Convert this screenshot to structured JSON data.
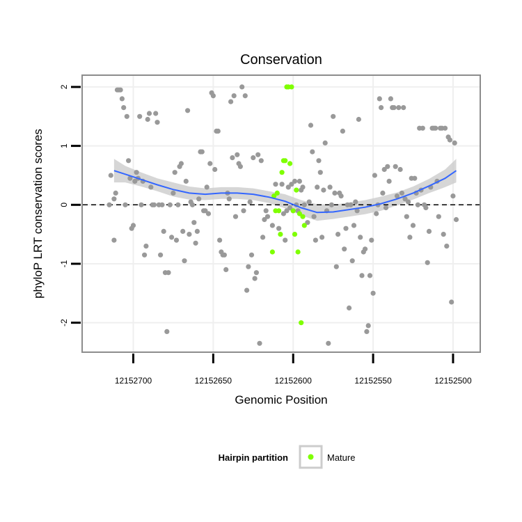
{
  "chart_data": {
    "type": "scatter",
    "title": "Conservation",
    "xlabel": "Genomic Position",
    "ylabel": "phyloP LRT conservation scores",
    "x_reversed": true,
    "xlim": [
      12152732,
      12152483
    ],
    "ylim": [
      -2.5,
      2.2
    ],
    "x_ticks": [
      12152700,
      12152650,
      12152600,
      12152550,
      12152500
    ],
    "x_tick_labels": [
      "12152700",
      "12152650",
      "12152600",
      "12152550",
      "12152500"
    ],
    "y_ticks": [
      -2,
      -1,
      0,
      1,
      2
    ],
    "y_tick_labels": [
      "-2",
      "-1",
      "0",
      "1",
      "2"
    ],
    "grid": true,
    "reference_line": {
      "y": 0,
      "style": "dashed"
    },
    "legend": {
      "title": "Hairpin partition",
      "placement": "bottom",
      "entries": [
        {
          "label": "Mature",
          "color": "#7fff00"
        }
      ]
    },
    "series": [
      {
        "color": "#999999",
        "points": [
          [
            12152712,
            -0.6
          ],
          [
            12152715,
            0.0
          ],
          [
            12152714,
            0.5
          ],
          [
            12152712,
            0.1
          ],
          [
            12152711,
            0.2
          ],
          [
            12152710,
            1.95
          ],
          [
            12152709,
            1.95
          ],
          [
            12152708,
            1.95
          ],
          [
            12152707,
            1.8
          ],
          [
            12152706,
            1.65
          ],
          [
            12152705,
            0.0
          ],
          [
            12152704,
            1.5
          ],
          [
            12152703,
            0.75
          ],
          [
            12152702,
            0.45
          ],
          [
            12152701,
            -0.4
          ],
          [
            12152700,
            -0.35
          ],
          [
            12152699,
            0.4
          ],
          [
            12152698,
            0.55
          ],
          [
            12152697,
            0.45
          ],
          [
            12152696,
            1.5
          ],
          [
            12152695,
            0.0
          ],
          [
            12152694,
            0.4
          ],
          [
            12152693,
            -0.85
          ],
          [
            12152692,
            -0.7
          ],
          [
            12152691,
            1.45
          ],
          [
            12152690,
            1.55
          ],
          [
            12152689,
            0.3
          ],
          [
            12152688,
            0.0
          ],
          [
            12152687,
            0.0
          ],
          [
            12152686,
            1.55
          ],
          [
            12152685,
            1.4
          ],
          [
            12152684,
            0.0
          ],
          [
            12152683,
            -0.85
          ],
          [
            12152682,
            0.0
          ],
          [
            12152681,
            -0.45
          ],
          [
            12152680,
            -1.15
          ],
          [
            12152679,
            -2.15
          ],
          [
            12152678,
            -1.15
          ],
          [
            12152677,
            0.0
          ],
          [
            12152676,
            -0.55
          ],
          [
            12152675,
            0.2
          ],
          [
            12152674,
            0.55
          ],
          [
            12152673,
            -0.6
          ],
          [
            12152672,
            0.0
          ],
          [
            12152671,
            0.65
          ],
          [
            12152670,
            0.7
          ],
          [
            12152669,
            -0.45
          ],
          [
            12152668,
            -0.95
          ],
          [
            12152667,
            0.4
          ],
          [
            12152666,
            1.6
          ],
          [
            12152665,
            -0.5
          ],
          [
            12152664,
            0.05
          ],
          [
            12152663,
            0.0
          ],
          [
            12152662,
            -0.3
          ],
          [
            12152661,
            -0.65
          ],
          [
            12152660,
            -0.45
          ],
          [
            12152659,
            0.1
          ],
          [
            12152658,
            0.9
          ],
          [
            12152657,
            0.9
          ],
          [
            12152656,
            -0.1
          ],
          [
            12152655,
            -0.1
          ],
          [
            12152654,
            0.3
          ],
          [
            12152653,
            -0.15
          ],
          [
            12152652,
            0.7
          ],
          [
            12152651,
            1.9
          ],
          [
            12152650,
            1.85
          ],
          [
            12152649,
            0.6
          ],
          [
            12152648,
            1.25
          ],
          [
            12152647,
            1.25
          ],
          [
            12152646,
            -0.6
          ],
          [
            12152645,
            -0.8
          ],
          [
            12152644,
            -0.85
          ],
          [
            12152643,
            -0.85
          ],
          [
            12152642,
            -1.1
          ],
          [
            12152641,
            0.2
          ],
          [
            12152640,
            0.1
          ],
          [
            12152639,
            1.75
          ],
          [
            12152638,
            0.8
          ],
          [
            12152637,
            1.85
          ],
          [
            12152636,
            -0.2
          ],
          [
            12152635,
            0.85
          ],
          [
            12152634,
            0.7
          ],
          [
            12152633,
            0.65
          ],
          [
            12152632,
            2.0
          ],
          [
            12152631,
            -0.1
          ],
          [
            12152630,
            1.85
          ],
          [
            12152629,
            -1.45
          ],
          [
            12152628,
            -1.05
          ],
          [
            12152627,
            0.05
          ],
          [
            12152626,
            -0.85
          ],
          [
            12152625,
            0.8
          ],
          [
            12152624,
            -1.25
          ],
          [
            12152623,
            -1.15
          ],
          [
            12152622,
            0.85
          ],
          [
            12152621,
            -2.35
          ],
          [
            12152620,
            0.75
          ],
          [
            12152619,
            -0.55
          ],
          [
            12152618,
            -0.25
          ],
          [
            12152617,
            -0.1
          ],
          [
            12152616,
            -0.2
          ],
          [
            12152613,
            -0.35
          ],
          [
            12152611,
            0.35
          ],
          [
            12152609,
            -0.4
          ],
          [
            12152607,
            0.35
          ],
          [
            12152606,
            -0.15
          ],
          [
            12152605,
            -0.6
          ],
          [
            12152604,
            -0.1
          ],
          [
            12152603,
            0.3
          ],
          [
            12152602,
            -0.05
          ],
          [
            12152601,
            0.35
          ],
          [
            12152600,
            -0.1
          ],
          [
            12152599,
            0.4
          ],
          [
            12152598,
            0.0
          ],
          [
            12152597,
            -0.1
          ],
          [
            12152596,
            0.4
          ],
          [
            12152595,
            0.25
          ],
          [
            12152594,
            0.3
          ],
          [
            12152593,
            0.0
          ],
          [
            12152591,
            -0.3
          ],
          [
            12152590,
            0.05
          ],
          [
            12152589,
            1.35
          ],
          [
            12152588,
            0.9
          ],
          [
            12152587,
            -0.2
          ],
          [
            12152586,
            -0.6
          ],
          [
            12152585,
            0.3
          ],
          [
            12152584,
            0.75
          ],
          [
            12152583,
            0.55
          ],
          [
            12152582,
            -0.55
          ],
          [
            12152581,
            0.25
          ],
          [
            12152580,
            1.05
          ],
          [
            12152579,
            -0.1
          ],
          [
            12152578,
            -2.35
          ],
          [
            12152577,
            0.3
          ],
          [
            12152576,
            0.0
          ],
          [
            12152575,
            1.5
          ],
          [
            12152574,
            0.2
          ],
          [
            12152573,
            -1.05
          ],
          [
            12152572,
            -0.5
          ],
          [
            12152571,
            0.2
          ],
          [
            12152570,
            0.15
          ],
          [
            12152569,
            1.25
          ],
          [
            12152568,
            -0.75
          ],
          [
            12152567,
            -0.4
          ],
          [
            12152566,
            0.0
          ],
          [
            12152565,
            -1.75
          ],
          [
            12152564,
            0.0
          ],
          [
            12152563,
            -0.95
          ],
          [
            12152562,
            -0.35
          ],
          [
            12152561,
            0.05
          ],
          [
            12152560,
            -0.1
          ],
          [
            12152559,
            1.45
          ],
          [
            12152558,
            -0.55
          ],
          [
            12152557,
            -1.2
          ],
          [
            12152556,
            -0.8
          ],
          [
            12152555,
            -0.75
          ],
          [
            12152554,
            -2.15
          ],
          [
            12152553,
            -2.05
          ],
          [
            12152552,
            -1.2
          ],
          [
            12152551,
            -0.6
          ],
          [
            12152550,
            -1.5
          ],
          [
            12152549,
            0.5
          ],
          [
            12152548,
            -0.15
          ],
          [
            12152547,
            0.0
          ],
          [
            12152546,
            1.8
          ],
          [
            12152545,
            1.65
          ],
          [
            12152544,
            0.2
          ],
          [
            12152543,
            0.6
          ],
          [
            12152542,
            -0.05
          ],
          [
            12152541,
            0.65
          ],
          [
            12152540,
            0.4
          ],
          [
            12152539,
            1.8
          ],
          [
            12152538,
            1.65
          ],
          [
            12152537,
            1.65
          ],
          [
            12152536,
            0.65
          ],
          [
            12152535,
            0.15
          ],
          [
            12152534,
            1.65
          ],
          [
            12152533,
            0.6
          ],
          [
            12152532,
            0.2
          ],
          [
            12152531,
            1.65
          ],
          [
            12152530,
            0.1
          ],
          [
            12152529,
            -0.2
          ],
          [
            12152528,
            0.05
          ],
          [
            12152527,
            -0.55
          ],
          [
            12152526,
            0.45
          ],
          [
            12152525,
            -0.35
          ],
          [
            12152524,
            0.45
          ],
          [
            12152523,
            0.2
          ],
          [
            12152522,
            0.0
          ],
          [
            12152521,
            1.3
          ],
          [
            12152520,
            0.25
          ],
          [
            12152519,
            1.3
          ],
          [
            12152518,
            0.0
          ],
          [
            12152517,
            -0.05
          ],
          [
            12152516,
            -0.98
          ],
          [
            12152515,
            -0.45
          ],
          [
            12152514,
            0.3
          ],
          [
            12152513,
            1.3
          ],
          [
            12152512,
            1.3
          ],
          [
            12152511,
            1.3
          ],
          [
            12152510,
            0.4
          ],
          [
            12152509,
            -0.2
          ],
          [
            12152508,
            1.3
          ],
          [
            12152507,
            1.3
          ],
          [
            12152506,
            -0.5
          ],
          [
            12152505,
            1.3
          ],
          [
            12152504,
            -0.7
          ],
          [
            12152503,
            1.15
          ],
          [
            12152502,
            1.1
          ],
          [
            12152501,
            -1.65
          ],
          [
            12152500,
            0.15
          ],
          [
            12152499,
            1.05
          ],
          [
            12152498,
            -0.25
          ]
        ]
      },
      {
        "name": "Mature",
        "color": "#7fff00",
        "points": [
          [
            12152613,
            -0.8
          ],
          [
            12152612,
            0.15
          ],
          [
            12152611,
            -0.1
          ],
          [
            12152610,
            0.2
          ],
          [
            12152609,
            -0.1
          ],
          [
            12152608,
            -0.5
          ],
          [
            12152607,
            0.55
          ],
          [
            12152606,
            0.75
          ],
          [
            12152605,
            0.75
          ],
          [
            12152604,
            2.0
          ],
          [
            12152603,
            2.0
          ],
          [
            12152602,
            0.7
          ],
          [
            12152601,
            2.0
          ],
          [
            12152600,
            -0.1
          ],
          [
            12152599,
            -0.5
          ],
          [
            12152598,
            0.25
          ],
          [
            12152597,
            -0.8
          ],
          [
            12152596,
            -0.15
          ],
          [
            12152595,
            -2.0
          ],
          [
            12152594,
            -0.2
          ],
          [
            12152593,
            -0.35
          ]
        ]
      }
    ],
    "smooth": {
      "color": "#3366ff",
      "band_color": "#cccccc",
      "points": [
        [
          12152712,
          0.58,
          0.2
        ],
        [
          12152705,
          0.52,
          0.14
        ],
        [
          12152695,
          0.43,
          0.12
        ],
        [
          12152685,
          0.34,
          0.11
        ],
        [
          12152675,
          0.26,
          0.12
        ],
        [
          12152665,
          0.2,
          0.11
        ],
        [
          12152655,
          0.18,
          0.1
        ],
        [
          12152645,
          0.2,
          0.1
        ],
        [
          12152635,
          0.2,
          0.1
        ],
        [
          12152625,
          0.18,
          0.1
        ],
        [
          12152615,
          0.13,
          0.1
        ],
        [
          12152605,
          0.06,
          0.12
        ],
        [
          12152595,
          -0.05,
          0.13
        ],
        [
          12152585,
          -0.13,
          0.14
        ],
        [
          12152575,
          -0.12,
          0.12
        ],
        [
          12152565,
          -0.08,
          0.12
        ],
        [
          12152555,
          -0.04,
          0.12
        ],
        [
          12152545,
          0.02,
          0.12
        ],
        [
          12152535,
          0.1,
          0.11
        ],
        [
          12152525,
          0.2,
          0.11
        ],
        [
          12152515,
          0.32,
          0.12
        ],
        [
          12152505,
          0.45,
          0.15
        ],
        [
          12152498,
          0.58,
          0.2
        ]
      ]
    }
  }
}
